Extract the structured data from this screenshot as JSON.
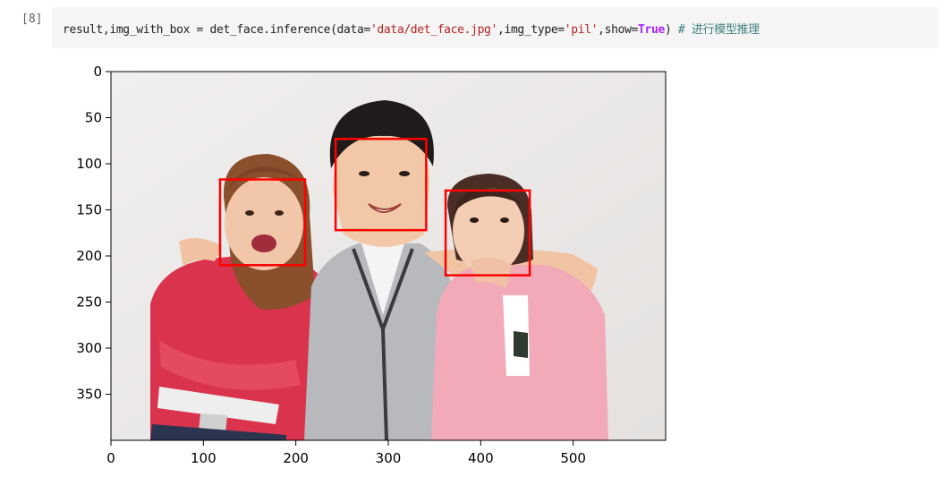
{
  "cell": {
    "prompt": "[8]",
    "code": {
      "pre": "result,img_with_box = det_face.inference(data=",
      "str1": "'data/det_face.jpg'",
      "mid": ",img_type=",
      "str2": "'pil'",
      "mid2": ",show=",
      "kw": "True",
      "post": ")",
      "comment": " # 进行模型推理"
    }
  },
  "output": {
    "chart_data": {
      "type": "image",
      "x_ticks": [
        0,
        100,
        200,
        300,
        400,
        500
      ],
      "y_ticks": [
        0,
        50,
        100,
        150,
        200,
        250,
        300,
        350
      ],
      "xlim": [
        0,
        600
      ],
      "ylim": [
        400,
        0
      ],
      "boxes": [
        {
          "x1": 118,
          "y1": 117,
          "x2": 210,
          "y2": 210
        },
        {
          "x1": 243,
          "y1": 73,
          "x2": 341,
          "y2": 172
        },
        {
          "x1": 362,
          "y1": 129,
          "x2": 453,
          "y2": 221
        }
      ],
      "box_color": "#ff0000"
    }
  }
}
